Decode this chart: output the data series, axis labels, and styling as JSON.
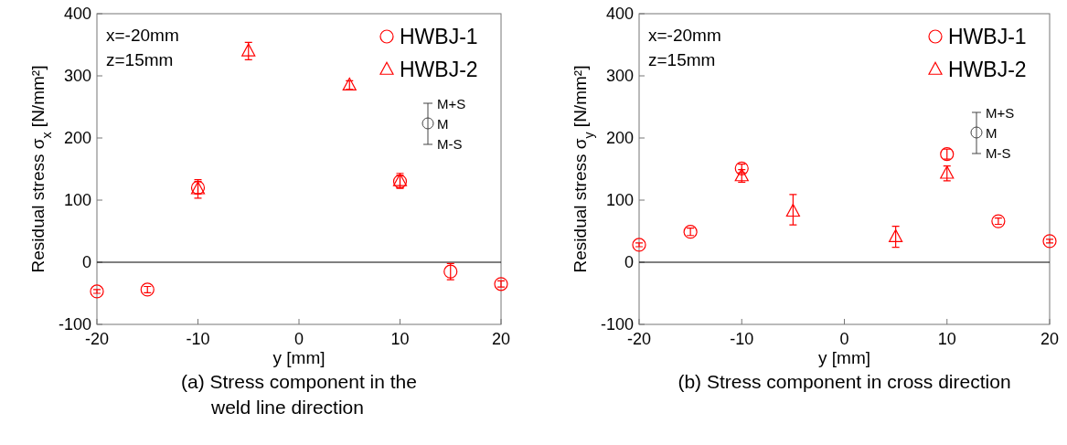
{
  "chart_data": [
    {
      "type": "scatter",
      "title": "(a)  Stress component in the\nweld line direction",
      "xlabel": "y [mm]",
      "ylabel": "Residual stress σ$_{x}$ [N/mm²]",
      "annotations": [
        "x=-20mm",
        "z=15mm",
        "M+S",
        "M",
        "M-S"
      ],
      "xlim": [
        -20,
        20
      ],
      "xticks": [
        -20,
        -10,
        0,
        10,
        20
      ],
      "ylim": [
        -100,
        400
      ],
      "yticks": [
        -100,
        0,
        100,
        200,
        300,
        400
      ],
      "grid": false,
      "legend": "top right",
      "ref_lines": [
        {
          "axis": "y",
          "value": 0
        }
      ],
      "series": [
        {
          "name": "HWBJ-1",
          "color": "#ff0000",
          "marker": "circle",
          "x": [
            -20,
            -15,
            -10,
            10,
            15,
            20
          ],
          "values": [
            -47,
            -44,
            120,
            130,
            -15,
            -35
          ],
          "errors": [
            3,
            5,
            10,
            10,
            13,
            5
          ]
        },
        {
          "name": "HWBJ-2",
          "color": "#ff0000",
          "marker": "triangle",
          "x": [
            -10,
            -5,
            5,
            10
          ],
          "values": [
            118,
            340,
            285,
            131
          ],
          "errors": [
            15,
            14,
            7,
            12
          ]
        }
      ]
    },
    {
      "type": "scatter",
      "title": "(b)  Stress component in cross direction",
      "xlabel": "y [mm]",
      "ylabel": "Residual stress σ$_{y}$ [N/mm²]",
      "annotations": [
        "x=-20mm",
        "z=15mm",
        "M+S",
        "M",
        "M-S"
      ],
      "xlim": [
        -20,
        20
      ],
      "xticks": [
        -20,
        -10,
        0,
        10,
        20
      ],
      "ylim": [
        -100,
        400
      ],
      "yticks": [
        -100,
        0,
        100,
        200,
        300,
        400
      ],
      "grid": false,
      "legend": "top right",
      "ref_lines": [
        {
          "axis": "y",
          "value": 0
        }
      ],
      "series": [
        {
          "name": "HWBJ-1",
          "color": "#ff0000",
          "marker": "circle",
          "x": [
            -20,
            -15,
            -10,
            10,
            15,
            20
          ],
          "values": [
            28,
            49,
            151,
            174,
            66,
            34
          ],
          "errors": [
            3,
            6,
            7,
            8,
            5,
            3
          ]
        },
        {
          "name": "HWBJ-2",
          "color": "#ff0000",
          "marker": "triangle",
          "x": [
            -10,
            -5,
            5,
            10
          ],
          "values": [
            139,
            82,
            41,
            143
          ],
          "errors": [
            10,
            [
              60,
              109
            ],
            17,
            12
          ]
        }
      ]
    }
  ]
}
